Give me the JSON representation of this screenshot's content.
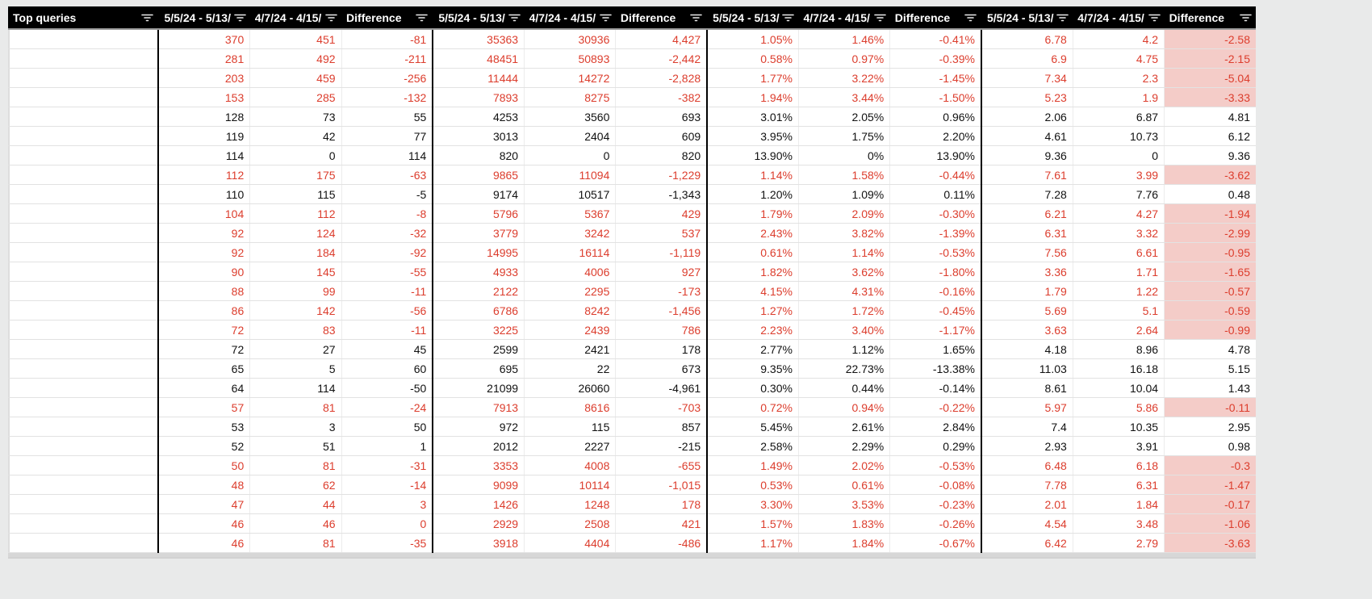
{
  "table": {
    "headers": [
      "Top queries",
      "5/5/24 - 5/13/",
      "4/7/24 - 4/15/",
      "Difference",
      "5/5/24 - 5/13/",
      "4/7/24 - 4/15/",
      "Difference",
      "5/5/24 - 5/13/",
      "4/7/24 - 4/15/",
      "Difference",
      "5/5/24 - 5/13/",
      "4/7/24 - 4/15/",
      "Difference"
    ],
    "header_icon": "filter-icon",
    "colors": {
      "header_bg": "#000000",
      "header_text": "#ffffff",
      "negative_text": "#dc3d2d",
      "negative_highlight": "#f4ccc8",
      "normal_text": "#111111"
    },
    "rows": [
      {
        "query": "",
        "declined": true,
        "values": [
          "370",
          "451",
          "-81",
          "35363",
          "30936",
          "4,427",
          "1.05%",
          "1.46%",
          "-0.41%",
          "6.78",
          "4.2",
          "-2.58"
        ]
      },
      {
        "query": "",
        "declined": true,
        "values": [
          "281",
          "492",
          "-211",
          "48451",
          "50893",
          "-2,442",
          "0.58%",
          "0.97%",
          "-0.39%",
          "6.9",
          "4.75",
          "-2.15"
        ]
      },
      {
        "query": "",
        "declined": true,
        "values": [
          "203",
          "459",
          "-256",
          "11444",
          "14272",
          "-2,828",
          "1.77%",
          "3.22%",
          "-1.45%",
          "7.34",
          "2.3",
          "-5.04"
        ]
      },
      {
        "query": "",
        "declined": true,
        "values": [
          "153",
          "285",
          "-132",
          "7893",
          "8275",
          "-382",
          "1.94%",
          "3.44%",
          "-1.50%",
          "5.23",
          "1.9",
          "-3.33"
        ]
      },
      {
        "query": "",
        "declined": false,
        "values": [
          "128",
          "73",
          "55",
          "4253",
          "3560",
          "693",
          "3.01%",
          "2.05%",
          "0.96%",
          "2.06",
          "6.87",
          "4.81"
        ]
      },
      {
        "query": "",
        "declined": false,
        "values": [
          "119",
          "42",
          "77",
          "3013",
          "2404",
          "609",
          "3.95%",
          "1.75%",
          "2.20%",
          "4.61",
          "10.73",
          "6.12"
        ]
      },
      {
        "query": "",
        "declined": false,
        "values": [
          "114",
          "0",
          "114",
          "820",
          "0",
          "820",
          "13.90%",
          "0%",
          "13.90%",
          "9.36",
          "0",
          "9.36"
        ]
      },
      {
        "query": "",
        "declined": true,
        "values": [
          "112",
          "175",
          "-63",
          "9865",
          "11094",
          "-1,229",
          "1.14%",
          "1.58%",
          "-0.44%",
          "7.61",
          "3.99",
          "-3.62"
        ]
      },
      {
        "query": "",
        "declined": false,
        "values": [
          "110",
          "115",
          "-5",
          "9174",
          "10517",
          "-1,343",
          "1.20%",
          "1.09%",
          "0.11%",
          "7.28",
          "7.76",
          "0.48"
        ]
      },
      {
        "query": "",
        "declined": true,
        "values": [
          "104",
          "112",
          "-8",
          "5796",
          "5367",
          "429",
          "1.79%",
          "2.09%",
          "-0.30%",
          "6.21",
          "4.27",
          "-1.94"
        ]
      },
      {
        "query": "",
        "declined": true,
        "values": [
          "92",
          "124",
          "-32",
          "3779",
          "3242",
          "537",
          "2.43%",
          "3.82%",
          "-1.39%",
          "6.31",
          "3.32",
          "-2.99"
        ]
      },
      {
        "query": "",
        "declined": true,
        "values": [
          "92",
          "184",
          "-92",
          "14995",
          "16114",
          "-1,119",
          "0.61%",
          "1.14%",
          "-0.53%",
          "7.56",
          "6.61",
          "-0.95"
        ]
      },
      {
        "query": "",
        "declined": true,
        "values": [
          "90",
          "145",
          "-55",
          "4933",
          "4006",
          "927",
          "1.82%",
          "3.62%",
          "-1.80%",
          "3.36",
          "1.71",
          "-1.65"
        ]
      },
      {
        "query": "",
        "declined": true,
        "values": [
          "88",
          "99",
          "-11",
          "2122",
          "2295",
          "-173",
          "4.15%",
          "4.31%",
          "-0.16%",
          "1.79",
          "1.22",
          "-0.57"
        ]
      },
      {
        "query": "",
        "declined": true,
        "values": [
          "86",
          "142",
          "-56",
          "6786",
          "8242",
          "-1,456",
          "1.27%",
          "1.72%",
          "-0.45%",
          "5.69",
          "5.1",
          "-0.59"
        ]
      },
      {
        "query": "",
        "declined": true,
        "values": [
          "72",
          "83",
          "-11",
          "3225",
          "2439",
          "786",
          "2.23%",
          "3.40%",
          "-1.17%",
          "3.63",
          "2.64",
          "-0.99"
        ]
      },
      {
        "query": "",
        "declined": false,
        "values": [
          "72",
          "27",
          "45",
          "2599",
          "2421",
          "178",
          "2.77%",
          "1.12%",
          "1.65%",
          "4.18",
          "8.96",
          "4.78"
        ]
      },
      {
        "query": "",
        "declined": false,
        "values": [
          "65",
          "5",
          "60",
          "695",
          "22",
          "673",
          "9.35%",
          "22.73%",
          "-13.38%",
          "11.03",
          "16.18",
          "5.15"
        ]
      },
      {
        "query": "",
        "declined": false,
        "values": [
          "64",
          "114",
          "-50",
          "21099",
          "26060",
          "-4,961",
          "0.30%",
          "0.44%",
          "-0.14%",
          "8.61",
          "10.04",
          "1.43"
        ]
      },
      {
        "query": "",
        "declined": true,
        "values": [
          "57",
          "81",
          "-24",
          "7913",
          "8616",
          "-703",
          "0.72%",
          "0.94%",
          "-0.22%",
          "5.97",
          "5.86",
          "-0.11"
        ]
      },
      {
        "query": "",
        "declined": false,
        "values": [
          "53",
          "3",
          "50",
          "972",
          "115",
          "857",
          "5.45%",
          "2.61%",
          "2.84%",
          "7.4",
          "10.35",
          "2.95"
        ]
      },
      {
        "query": "",
        "declined": false,
        "values": [
          "52",
          "51",
          "1",
          "2012",
          "2227",
          "-215",
          "2.58%",
          "2.29%",
          "0.29%",
          "2.93",
          "3.91",
          "0.98"
        ]
      },
      {
        "query": "",
        "declined": true,
        "values": [
          "50",
          "81",
          "-31",
          "3353",
          "4008",
          "-655",
          "1.49%",
          "2.02%",
          "-0.53%",
          "6.48",
          "6.18",
          "-0.3"
        ]
      },
      {
        "query": "",
        "declined": true,
        "values": [
          "48",
          "62",
          "-14",
          "9099",
          "10114",
          "-1,015",
          "0.53%",
          "0.61%",
          "-0.08%",
          "7.78",
          "6.31",
          "-1.47"
        ]
      },
      {
        "query": "",
        "declined": true,
        "values": [
          "47",
          "44",
          "3",
          "1426",
          "1248",
          "178",
          "3.30%",
          "3.53%",
          "-0.23%",
          "2.01",
          "1.84",
          "-0.17"
        ]
      },
      {
        "query": "",
        "declined": true,
        "values": [
          "46",
          "46",
          "0",
          "2929",
          "2508",
          "421",
          "1.57%",
          "1.83%",
          "-0.26%",
          "4.54",
          "3.48",
          "-1.06"
        ]
      },
      {
        "query": "",
        "declined": true,
        "values": [
          "46",
          "81",
          "-35",
          "3918",
          "4404",
          "-486",
          "1.17%",
          "1.84%",
          "-0.67%",
          "6.42",
          "2.79",
          "-3.63"
        ]
      }
    ]
  }
}
